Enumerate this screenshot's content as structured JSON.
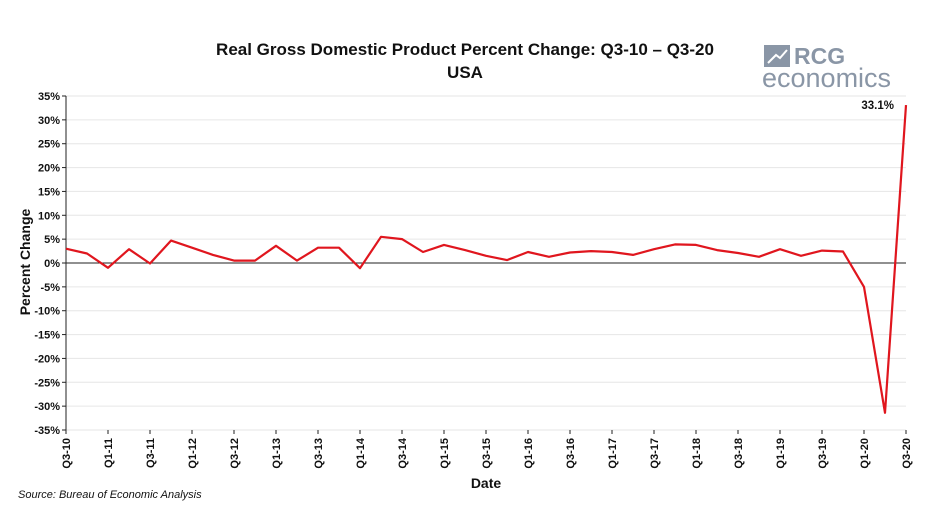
{
  "chart_data": {
    "type": "line",
    "title": "Real Gross Domestic Product Percent Change: Q3-10 – Q3-20",
    "subtitle": "USA",
    "xlabel": "Date",
    "ylabel": "Percent Change",
    "source": "Source: Bureau of Economic Analysis",
    "ylim": [
      -35,
      35
    ],
    "y_ticks": [
      {
        "value": 35,
        "label": "35%"
      },
      {
        "value": 30,
        "label": "30%"
      },
      {
        "value": 25,
        "label": "25%"
      },
      {
        "value": 20,
        "label": "20%"
      },
      {
        "value": 15,
        "label": "15%"
      },
      {
        "value": 10,
        "label": "10%"
      },
      {
        "value": 5,
        "label": "5%"
      },
      {
        "value": 0,
        "label": "0%"
      },
      {
        "value": -5,
        "label": "-5%"
      },
      {
        "value": -10,
        "label": "-10%"
      },
      {
        "value": -15,
        "label": "-15%"
      },
      {
        "value": -20,
        "label": "-20%"
      },
      {
        "value": -25,
        "label": "-25%"
      },
      {
        "value": -30,
        "label": "-30%"
      },
      {
        "value": -35,
        "label": "-35%"
      }
    ],
    "x_ticks": [
      "Q3-10",
      "Q1-11",
      "Q3-11",
      "Q1-12",
      "Q3-12",
      "Q1-13",
      "Q3-13",
      "Q1-14",
      "Q3-14",
      "Q1-15",
      "Q3-15",
      "Q1-16",
      "Q3-16",
      "Q1-17",
      "Q3-17",
      "Q1-18",
      "Q3-18",
      "Q1-19",
      "Q3-19",
      "Q1-20",
      "Q3-20"
    ],
    "grid": true,
    "series": [
      {
        "color": "#e0161e",
        "x": [
          "Q3-10",
          "Q4-10",
          "Q1-11",
          "Q2-11",
          "Q3-11",
          "Q4-11",
          "Q1-12",
          "Q2-12",
          "Q3-12",
          "Q4-12",
          "Q1-13",
          "Q2-13",
          "Q3-13",
          "Q4-13",
          "Q1-14",
          "Q2-14",
          "Q3-14",
          "Q4-14",
          "Q1-15",
          "Q2-15",
          "Q3-15",
          "Q4-15",
          "Q1-16",
          "Q2-16",
          "Q3-16",
          "Q4-16",
          "Q1-17",
          "Q2-17",
          "Q3-17",
          "Q4-17",
          "Q1-18",
          "Q2-18",
          "Q3-18",
          "Q4-18",
          "Q1-19",
          "Q2-19",
          "Q3-19",
          "Q4-19",
          "Q1-20",
          "Q2-20",
          "Q3-20"
        ],
        "values": [
          3.0,
          2.0,
          -1.0,
          2.9,
          -0.1,
          4.7,
          3.2,
          1.7,
          0.5,
          0.5,
          3.6,
          0.5,
          3.2,
          3.2,
          -1.1,
          5.5,
          5.0,
          2.3,
          3.8,
          2.7,
          1.5,
          0.6,
          2.3,
          1.3,
          2.2,
          2.5,
          2.3,
          1.7,
          2.9,
          3.9,
          3.8,
          2.7,
          2.1,
          1.3,
          2.9,
          1.5,
          2.6,
          2.4,
          -5.0,
          -31.4,
          33.1
        ]
      }
    ],
    "annotations": [
      {
        "text": "33.1%",
        "x": "Q3-20",
        "y": 33.1
      }
    ]
  },
  "logo": {
    "line1": "RCG",
    "line2": "economics",
    "color": "#8a96a6"
  }
}
